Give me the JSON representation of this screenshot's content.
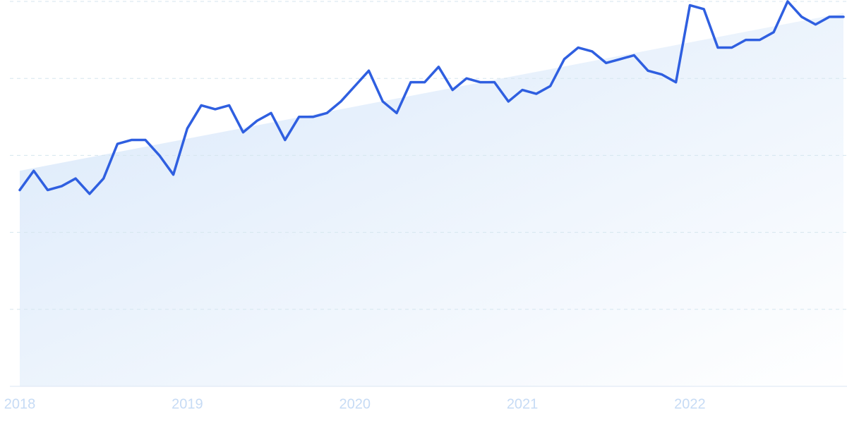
{
  "chart_data": {
    "type": "line",
    "categories": [
      "2018",
      null,
      null,
      null,
      null,
      null,
      null,
      null,
      null,
      null,
      null,
      null,
      "2019",
      null,
      null,
      null,
      null,
      null,
      null,
      null,
      null,
      null,
      null,
      null,
      "2020",
      null,
      null,
      null,
      null,
      null,
      null,
      null,
      null,
      null,
      null,
      null,
      "2021",
      null,
      null,
      null,
      null,
      null,
      null,
      null,
      null,
      null,
      null,
      null,
      "2022",
      null,
      null,
      null,
      null,
      null,
      null,
      null,
      null,
      null,
      null,
      null
    ],
    "series": [
      {
        "color": "#2f5fe0",
        "values": [
          51,
          56,
          51,
          52,
          54,
          50,
          54,
          63,
          64,
          64,
          60,
          55,
          67,
          73,
          72,
          73,
          66,
          69,
          71,
          64,
          70,
          70,
          71,
          74,
          78,
          82,
          74,
          71,
          79,
          79,
          83,
          77,
          80,
          79,
          79,
          74,
          77,
          76,
          78,
          85,
          88,
          87,
          84,
          85,
          86,
          82,
          81,
          79,
          99,
          98,
          88,
          88,
          90,
          90,
          92,
          100,
          96,
          94,
          96,
          96
        ]
      }
    ],
    "trendline": {
      "color": "#dbe9fb",
      "values": [
        56,
        97
      ]
    },
    "ylim": [
      0,
      100
    ],
    "yticks": [
      0,
      20,
      40,
      60,
      80,
      100
    ],
    "grid": true
  }
}
